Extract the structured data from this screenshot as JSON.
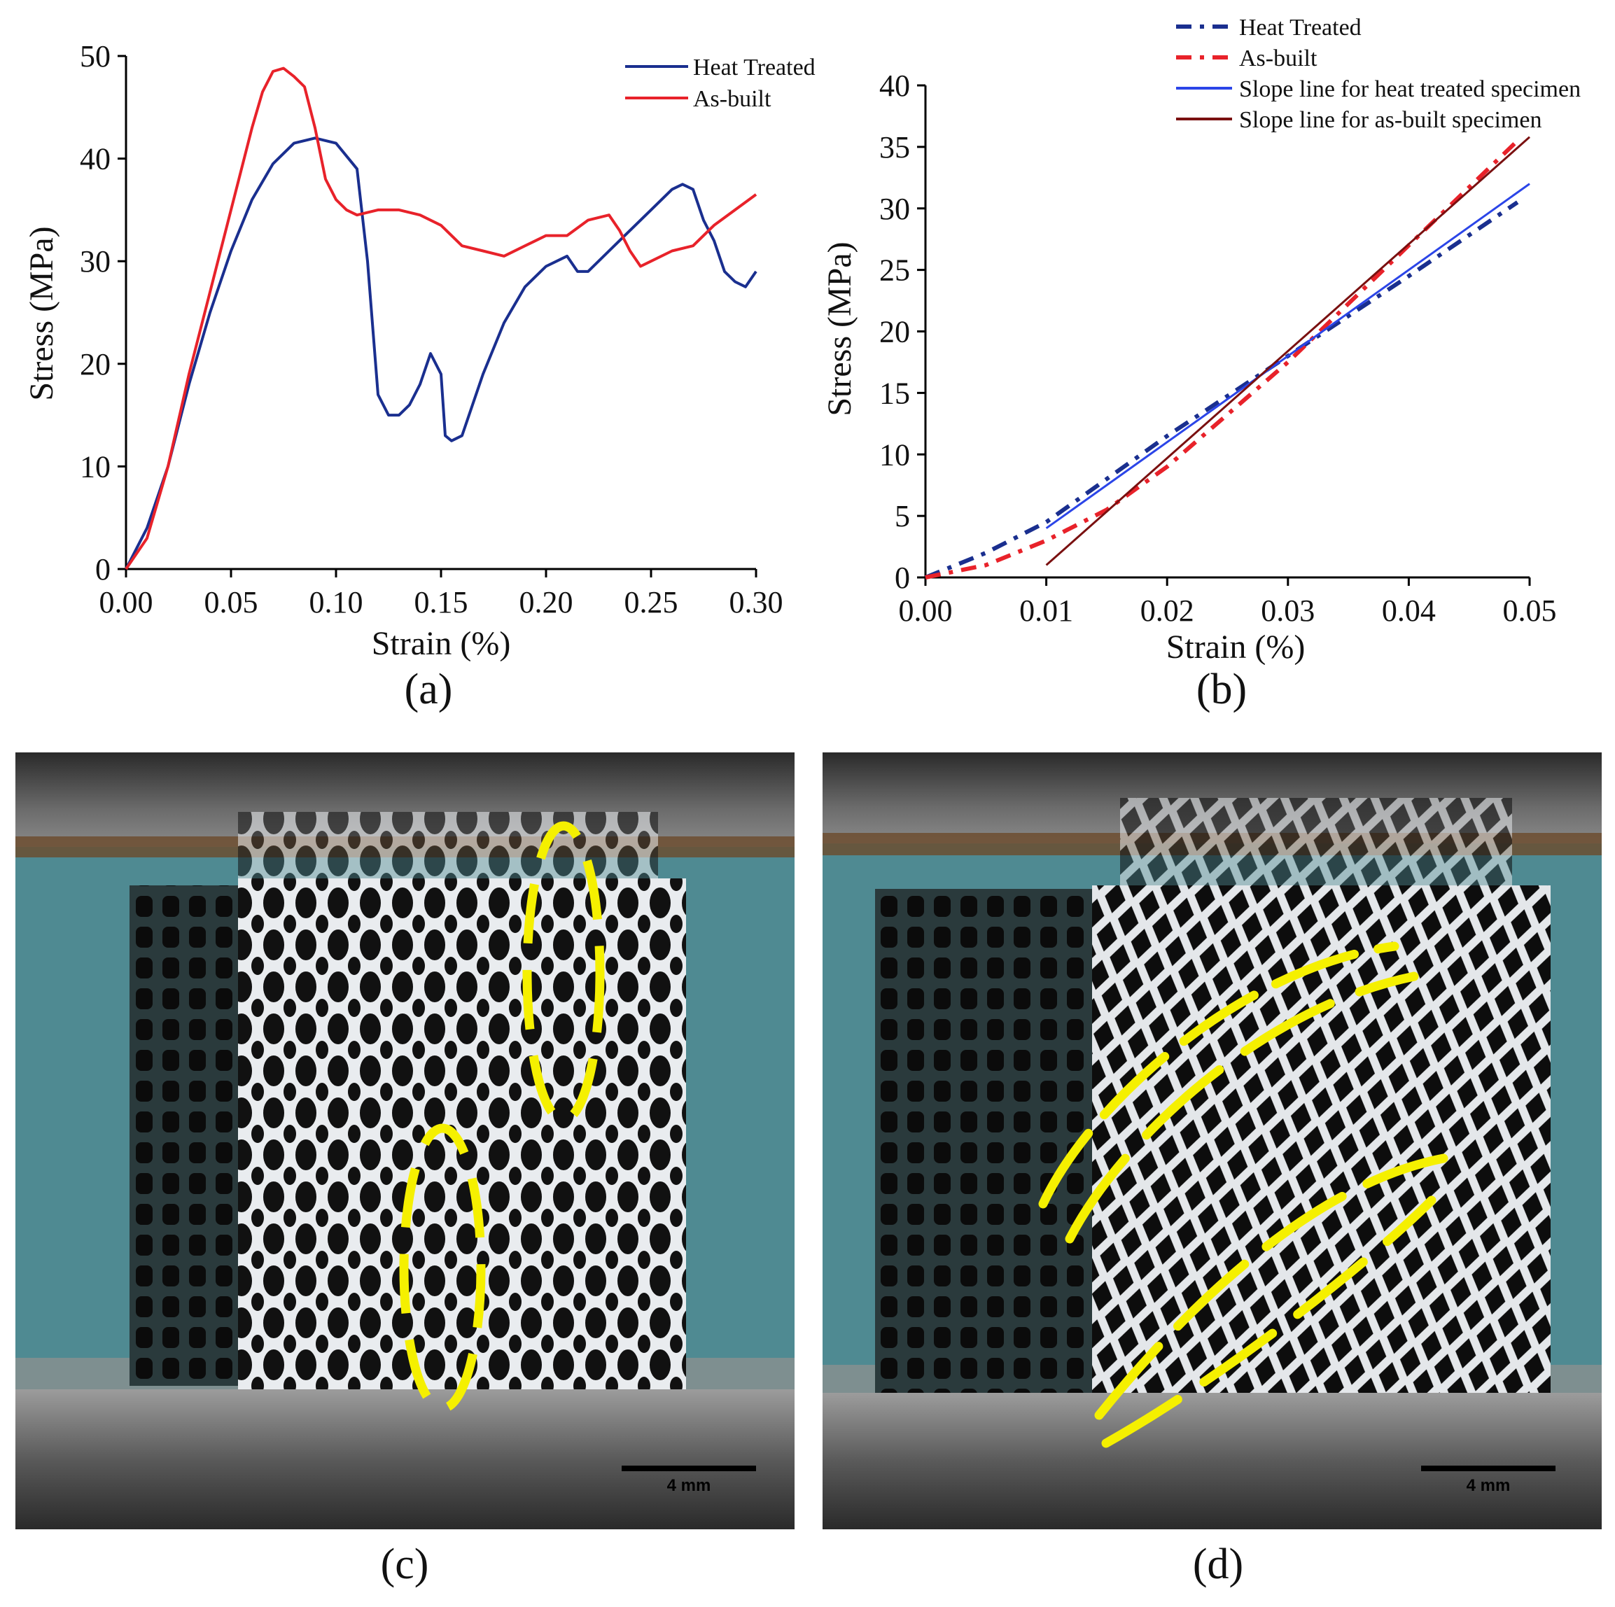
{
  "colors": {
    "heat_treated": "#1a2f8f",
    "as_built": "#e8222a",
    "slope_heat": "#2b45e8",
    "slope_asbuilt": "#7a1010",
    "annotation": "#f5f000",
    "photo_bg": "#4f8a92"
  },
  "chart_data": [
    {
      "type": "line",
      "panel": "(a)",
      "xlabel": "Strain (%)",
      "ylabel": "Stress (MPa)",
      "xlim": [
        0,
        0.3
      ],
      "ylim": [
        0,
        50
      ],
      "xticks": [
        "0.00",
        "0.05",
        "0.10",
        "0.15",
        "0.20",
        "0.25",
        "0.30"
      ],
      "yticks": [
        "0",
        "10",
        "20",
        "30",
        "40",
        "50"
      ],
      "legend": "top-right",
      "series": [
        {
          "name": "Heat Treated",
          "x": [
            0,
            0.01,
            0.02,
            0.03,
            0.04,
            0.05,
            0.06,
            0.07,
            0.08,
            0.09,
            0.1,
            0.11,
            0.115,
            0.12,
            0.125,
            0.13,
            0.135,
            0.14,
            0.145,
            0.15,
            0.152,
            0.155,
            0.16,
            0.165,
            0.17,
            0.18,
            0.19,
            0.2,
            0.21,
            0.215,
            0.22,
            0.23,
            0.24,
            0.25,
            0.26,
            0.265,
            0.27,
            0.275,
            0.28,
            0.285,
            0.29,
            0.295,
            0.3
          ],
          "y": [
            0,
            4,
            10,
            18,
            25,
            31,
            36,
            39.5,
            41.5,
            42,
            41.5,
            39,
            30,
            17,
            15,
            15,
            16,
            18,
            21,
            19,
            13,
            12.5,
            13,
            16,
            19,
            24,
            27.5,
            29.5,
            30.5,
            29,
            29,
            31,
            33,
            35,
            37,
            37.5,
            37,
            34,
            32,
            29,
            28,
            27.5,
            29
          ]
        },
        {
          "name": "As-built",
          "x": [
            0,
            0.01,
            0.02,
            0.03,
            0.04,
            0.05,
            0.06,
            0.065,
            0.07,
            0.075,
            0.08,
            0.085,
            0.09,
            0.095,
            0.1,
            0.105,
            0.11,
            0.12,
            0.13,
            0.14,
            0.15,
            0.16,
            0.17,
            0.18,
            0.19,
            0.2,
            0.21,
            0.22,
            0.23,
            0.235,
            0.24,
            0.245,
            0.25,
            0.26,
            0.27,
            0.28,
            0.29,
            0.3
          ],
          "y": [
            0,
            3,
            10,
            19,
            27,
            35,
            43,
            46.5,
            48.5,
            48.8,
            48,
            47,
            43,
            38,
            36,
            35,
            34.5,
            35,
            35,
            34.5,
            33.5,
            31.5,
            31,
            30.5,
            31.5,
            32.5,
            32.5,
            34,
            34.5,
            33,
            31,
            29.5,
            30,
            31,
            31.5,
            33.5,
            35,
            36.5
          ]
        }
      ]
    },
    {
      "type": "line",
      "panel": "(b)",
      "xlabel": "Strain (%)",
      "ylabel": "Stress (MPa)",
      "xlim": [
        0,
        0.05
      ],
      "ylim": [
        0,
        40
      ],
      "xticks": [
        "0.00",
        "0.01",
        "0.02",
        "0.03",
        "0.04",
        "0.05"
      ],
      "yticks": [
        "0",
        "5",
        "10",
        "15",
        "20",
        "25",
        "30",
        "35",
        "40"
      ],
      "legend": "top-right",
      "series": [
        {
          "name": "Heat Treated",
          "style": "dash-dot",
          "x": [
            0,
            0.005,
            0.01,
            0.02,
            0.03,
            0.04,
            0.049
          ],
          "y": [
            0,
            2,
            4.5,
            11.5,
            18,
            24.5,
            30.5
          ]
        },
        {
          "name": "As-built",
          "style": "dash-dot",
          "x": [
            0,
            0.005,
            0.01,
            0.015,
            0.02,
            0.03,
            0.04,
            0.049
          ],
          "y": [
            0,
            1,
            3,
            5.5,
            9,
            17.5,
            27,
            35.5
          ]
        },
        {
          "name": "Slope line for heat treated specimen",
          "style": "solid",
          "x": [
            0.01,
            0.05
          ],
          "y": [
            4,
            32
          ]
        },
        {
          "name": "Slope line for as-built specimen",
          "style": "solid",
          "x": [
            0.01,
            0.05
          ],
          "y": [
            1,
            35.8
          ]
        }
      ]
    }
  ],
  "photos": {
    "c_caption": "(c)",
    "d_caption": "(d)",
    "c_scale": "4 mm",
    "d_scale": "4 mm"
  }
}
